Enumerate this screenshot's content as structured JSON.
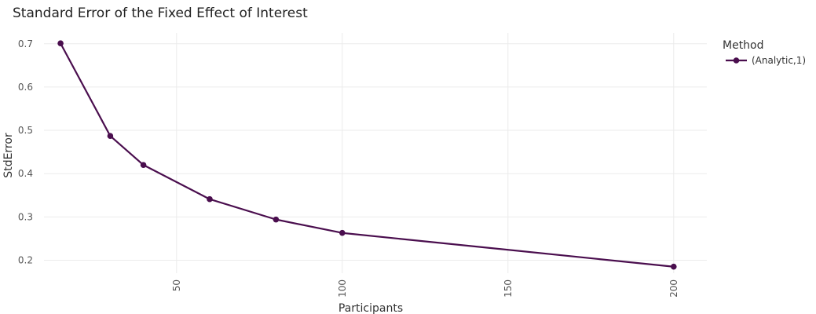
{
  "chart_data": {
    "type": "line",
    "title": "Standard Error of the Fixed Effect of Interest",
    "xlabel": "Participants",
    "ylabel": "StdError",
    "xlim": [
      10,
      210
    ],
    "ylim": [
      0.17,
      0.725
    ],
    "xticks": [
      50,
      100,
      150,
      200
    ],
    "yticks": [
      0.2,
      0.3,
      0.4,
      0.5,
      0.6,
      0.7
    ],
    "grid": true,
    "legend": {
      "title": "Method",
      "position": "right"
    },
    "series": [
      {
        "name": "(Analytic,1)",
        "color": "#4a0e4e",
        "x": [
          15,
          30,
          40,
          60,
          80,
          100,
          200
        ],
        "y": [
          0.701,
          0.487,
          0.42,
          0.341,
          0.294,
          0.263,
          0.185
        ]
      }
    ]
  }
}
